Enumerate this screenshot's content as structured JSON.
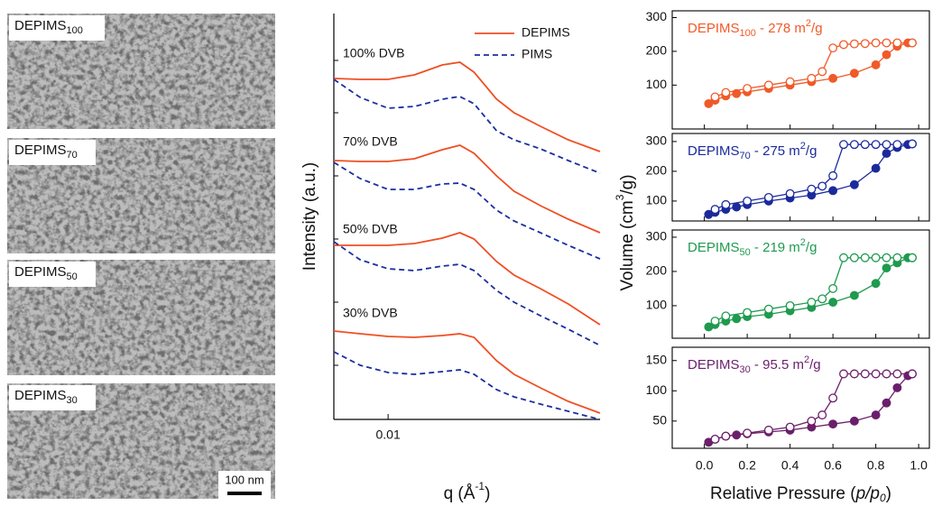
{
  "images": [
    {
      "name": "DEPIMS",
      "sub": "100"
    },
    {
      "name": "DEPIMS",
      "sub": "70"
    },
    {
      "name": "DEPIMS",
      "sub": "50"
    },
    {
      "name": "DEPIMS",
      "sub": "30"
    }
  ],
  "scale_bar": "100 nm",
  "chart_data": [
    {
      "type": "line",
      "log_x": true,
      "xlabel": [
        "q (Å",
        "-1",
        ")"
      ],
      "ylabel": "Intensity (a.u.)",
      "x": [
        0.005,
        0.007,
        0.01,
        0.014,
        0.02,
        0.025,
        0.03,
        0.04,
        0.05,
        0.07,
        0.1,
        0.15
      ],
      "xlim": [
        0.005,
        0.15
      ],
      "xticks": [
        0.01
      ],
      "ylim": [
        0,
        450
      ],
      "yticks": [
        60,
        130,
        200,
        270,
        340,
        398
      ],
      "annotations": [
        "100% DVB",
        "70% DVB",
        "50% DVB",
        "30% DVB"
      ],
      "legend": "upper right",
      "series": [
        {
          "name": "DEPIMS",
          "color": "#f04e23",
          "dashed": false,
          "curves": [
            [
              378,
              377,
              377,
              382,
              393,
              396,
              385,
              355,
              340,
              325,
              310,
              297
            ],
            [
              287,
              286,
              286,
              289,
              299,
              304,
              295,
              270,
              253,
              237,
              222,
              207
            ],
            [
              193,
              193,
              193,
              195,
              201,
              207,
              200,
              175,
              160,
              145,
              128,
              105
            ],
            [
              98,
              95,
              92,
              91,
              93,
              95,
              91,
              65,
              50,
              35,
              20,
              7
            ]
          ]
        },
        {
          "name": "PIMS",
          "color": "#1a2ea0",
          "dashed": true,
          "curves": [
            [
              377,
              357,
              345,
              347,
              355,
              358,
              350,
              320,
              310,
              300,
              287,
              273
            ],
            [
              285,
              267,
              255,
              255,
              261,
              262,
              255,
              232,
              220,
              207,
              193,
              178
            ],
            [
              197,
              177,
              167,
              165,
              170,
              172,
              165,
              143,
              130,
              115,
              100,
              82
            ],
            [
              75,
              60,
              52,
              50,
              53,
              55,
              50,
              33,
              25,
              17,
              9,
              0
            ]
          ]
        }
      ]
    },
    {
      "type": "line",
      "xlabel": [
        "Relative Pressure (",
        "p/p",
        "0",
        ")"
      ],
      "ylabel": [
        "Volume (cm",
        "3",
        "/g)"
      ],
      "xlim": [
        -0.15,
        1.05
      ],
      "xticks": [
        {
          "value": 0,
          "label": "0.0"
        },
        {
          "value": 0.2,
          "label": "0.2"
        },
        {
          "value": 0.4,
          "label": "0.4"
        },
        {
          "value": 0.6,
          "label": "0.6"
        },
        {
          "value": 0.8,
          "label": "0.8"
        },
        {
          "value": 1,
          "label": "1.0"
        }
      ],
      "x_adsorption": [
        0.02,
        0.05,
        0.1,
        0.15,
        0.2,
        0.3,
        0.4,
        0.5,
        0.6,
        0.7,
        0.8,
        0.85,
        0.9,
        0.95,
        0.97
      ],
      "x_desorption": [
        0.97,
        0.9,
        0.85,
        0.8,
        0.75,
        0.7,
        0.65,
        0.6,
        0.55,
        0.5,
        0.4,
        0.3,
        0.2,
        0.1,
        0.05
      ],
      "panels": [
        {
          "label": [
            "DEPIMS",
            "100",
            " - 278 m",
            "2",
            "/g"
          ],
          "color": "#f05a28",
          "ylim": [
            -30,
            320
          ],
          "yticks": [
            100,
            200,
            300
          ],
          "adsorption": [
            45,
            55,
            68,
            75,
            80,
            90,
            100,
            110,
            120,
            135,
            160,
            190,
            215,
            225,
            225
          ],
          "desorption": [
            225,
            225,
            225,
            225,
            223,
            222,
            220,
            210,
            140,
            120,
            110,
            100,
            90,
            78,
            65
          ]
        },
        {
          "label": [
            "DEPIMS",
            "70",
            " - 275 m",
            "2",
            "/g"
          ],
          "color": "#1b2a9b",
          "ylim": [
            33,
            327
          ],
          "yticks": [
            100,
            200,
            300
          ],
          "adsorption": [
            55,
            62,
            72,
            80,
            88,
            100,
            110,
            120,
            135,
            155,
            210,
            260,
            280,
            290,
            292
          ],
          "desorption": [
            292,
            290,
            290,
            290,
            290,
            290,
            290,
            185,
            150,
            140,
            125,
            112,
            100,
            88,
            72
          ]
        },
        {
          "label": [
            "DEPIMS",
            "50",
            " - 219 m",
            "2",
            "/g"
          ],
          "color": "#1f9a4f",
          "ylim": [
            5,
            321
          ],
          "yticks": [
            100,
            200,
            300
          ],
          "adsorption": [
            38,
            45,
            55,
            62,
            68,
            75,
            85,
            95,
            110,
            130,
            165,
            210,
            225,
            240,
            240
          ],
          "desorption": [
            240,
            240,
            240,
            240,
            240,
            240,
            240,
            150,
            120,
            110,
            100,
            90,
            80,
            70,
            55
          ]
        },
        {
          "label": [
            "DEPIMS",
            "30",
            " - 95.5 m",
            "2",
            "/g"
          ],
          "color": "#6b1f6b",
          "ylim": [
            5,
            172
          ],
          "yticks": [
            50,
            100,
            150
          ],
          "adsorption": [
            15,
            20,
            25,
            27,
            29,
            32,
            35,
            40,
            45,
            50,
            60,
            80,
            105,
            125,
            128
          ],
          "desorption": [
            128,
            128,
            128,
            128,
            128,
            128,
            128,
            88,
            60,
            50,
            40,
            35,
            30,
            25,
            20
          ]
        }
      ]
    }
  ]
}
